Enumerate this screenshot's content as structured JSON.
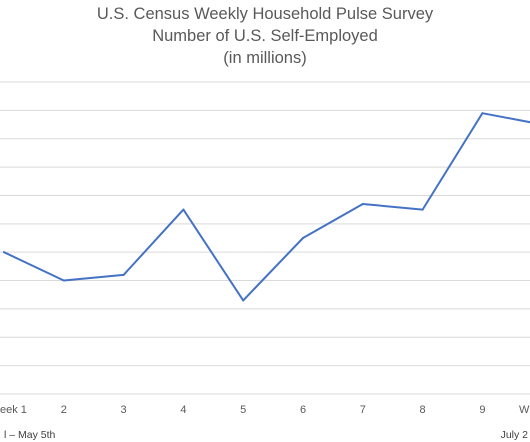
{
  "chart_data": {
    "type": "line",
    "title": [
      "U.S. Census Weekly Household Pulse Survey",
      "Number of U.S. Self-Employed",
      "(in millions)"
    ],
    "categories": [
      "eek 1",
      "2",
      "3",
      "4",
      "5",
      "6",
      "7",
      "8",
      "9",
      "W"
    ],
    "series": [
      {
        "values": [
          14.0,
          13.0,
          13.2,
          15.5,
          12.3,
          14.5,
          15.7,
          15.5,
          18.9,
          18.5
        ]
      }
    ],
    "ylim": [
      9,
      20
    ],
    "grid": true,
    "line_color": "#4472C4",
    "grid_color": "#D9D9D9",
    "footnotes": {
      "left": "l – May 5th",
      "right": "July 2"
    }
  }
}
